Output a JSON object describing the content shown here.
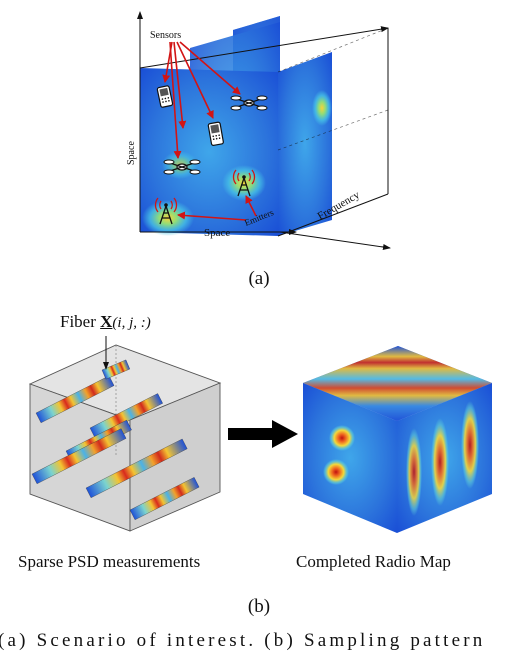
{
  "panel_a": {
    "sensors_label": "Sensors",
    "space_vertical": "Space",
    "space_horizontal": "Space",
    "emitters_label": "Emitters",
    "frequency_label": "Frequency",
    "caption": "(a)"
  },
  "panel_b": {
    "fiber_prefix": "Fiber",
    "fiber_symbol": "X",
    "fiber_index": "(i, j, :)",
    "left_label": "Sparse PSD measurements",
    "right_label": "Completed Radio Map",
    "caption": "(b)"
  },
  "figure_caption": "(a) Scenario of interest. (b) Sampling pattern",
  "colors": {
    "arrow_red": "#d21414",
    "field_low": "#1a4fd6",
    "field_high": "#f0e232",
    "cube_gray": "#d9d9d9"
  },
  "icons": [
    "phone-icon",
    "drone-icon",
    "tower-icon"
  ]
}
